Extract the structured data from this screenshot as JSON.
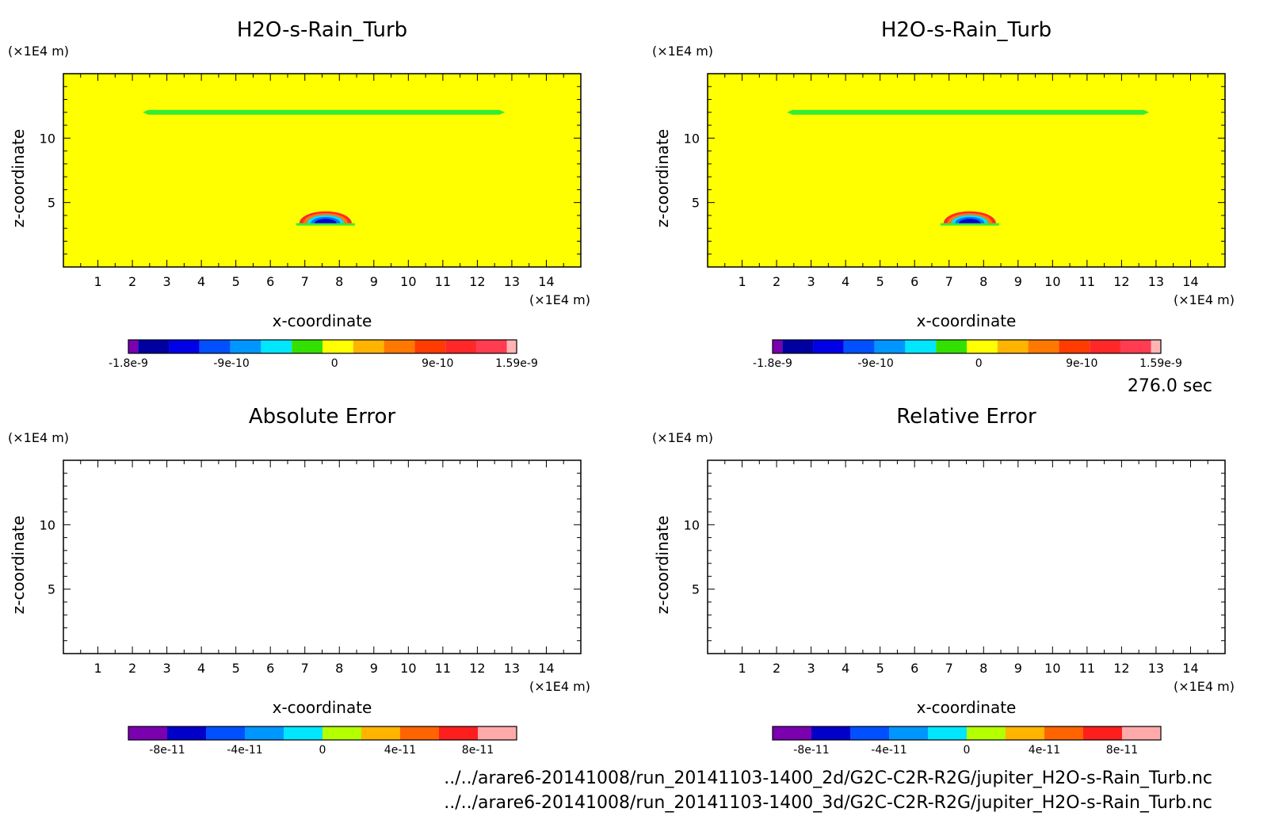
{
  "time_label": "276.0 sec",
  "footer": {
    "line1": "../../arare6-20141008/run_20141103-1400_2d/G2C-C2R-R2G/jupiter_H2O-s-Rain_Turb.nc",
    "line2": "../../arare6-20141008/run_20141103-1400_3d/G2C-C2R-R2G/jupiter_H2O-s-Rain_Turb.nc"
  },
  "chart_data": [
    {
      "type": "heatmap",
      "title": "H2O-s-Rain_Turb",
      "xlabel": "x-coordinate",
      "ylabel": "z-coordinate",
      "x_unit": "(×1E4 m)",
      "y_unit": "(×1E4 m)",
      "xlim": [
        0,
        15
      ],
      "ylim": [
        0,
        15
      ],
      "x_ticks": [
        "1",
        "2",
        "3",
        "4",
        "5",
        "6",
        "7",
        "8",
        "9",
        "10",
        "11",
        "12",
        "13",
        "14"
      ],
      "y_ticks": [
        "5",
        "10"
      ],
      "background_color": "#ffff00",
      "features": [
        {
          "kind": "band",
          "x": [
            2.3,
            12.8
          ],
          "z": 12.0,
          "color": "#33ee33"
        },
        {
          "kind": "dome",
          "x_center": 7.6,
          "z_base": 3.4,
          "width": 1.7,
          "colors": [
            "#ff2a2a",
            "#ff7a00",
            "#00e0ff",
            "#0070ff",
            "#0000c8"
          ]
        }
      ],
      "colorbar": {
        "colors": [
          "#7a00b0",
          "#0000a0",
          "#0000e6",
          "#0050ff",
          "#0096ff",
          "#00e6ff",
          "#33e000",
          "#ffff00",
          "#ffb400",
          "#ff7800",
          "#ff3c00",
          "#ff2828",
          "#ff3c50",
          "#ffb4b4"
        ],
        "tick_labels": [
          "-1.8e-9",
          "-9e-10",
          "0",
          "9e-10",
          "1.59e-9"
        ],
        "tick_values": [
          -1.8e-09,
          -9e-10,
          0,
          9e-10,
          1.59e-09
        ],
        "range": [
          -1.8e-09,
          1.59e-09
        ]
      }
    },
    {
      "type": "heatmap",
      "title": "H2O-s-Rain_Turb",
      "xlabel": "x-coordinate",
      "ylabel": "z-coordinate",
      "x_unit": "(×1E4 m)",
      "y_unit": "(×1E4 m)",
      "xlim": [
        0,
        15
      ],
      "ylim": [
        0,
        15
      ],
      "x_ticks": [
        "1",
        "2",
        "3",
        "4",
        "5",
        "6",
        "7",
        "8",
        "9",
        "10",
        "11",
        "12",
        "13",
        "14"
      ],
      "y_ticks": [
        "5",
        "10"
      ],
      "background_color": "#ffff00",
      "features": [
        {
          "kind": "band",
          "x": [
            2.3,
            12.8
          ],
          "z": 12.0,
          "color": "#33ee33"
        },
        {
          "kind": "dome",
          "x_center": 7.6,
          "z_base": 3.4,
          "width": 1.7,
          "colors": [
            "#ff2a2a",
            "#ff7a00",
            "#00e0ff",
            "#0070ff",
            "#0000c8"
          ]
        }
      ],
      "colorbar": {
        "colors": [
          "#7a00b0",
          "#0000a0",
          "#0000e6",
          "#0050ff",
          "#0096ff",
          "#00e6ff",
          "#33e000",
          "#ffff00",
          "#ffb400",
          "#ff7800",
          "#ff3c00",
          "#ff2828",
          "#ff3c50",
          "#ffb4b4"
        ],
        "tick_labels": [
          "-1.8e-9",
          "-9e-10",
          "0",
          "9e-10",
          "1.59e-9"
        ],
        "tick_values": [
          -1.8e-09,
          -9e-10,
          0,
          9e-10,
          1.59e-09
        ],
        "range": [
          -1.8e-09,
          1.59e-09
        ]
      }
    },
    {
      "type": "heatmap",
      "title": "Absolute Error",
      "xlabel": "x-coordinate",
      "ylabel": "z-coordinate",
      "x_unit": "(×1E4 m)",
      "y_unit": "(×1E4 m)",
      "xlim": [
        0,
        15
      ],
      "ylim": [
        0,
        15
      ],
      "x_ticks": [
        "1",
        "2",
        "3",
        "4",
        "5",
        "6",
        "7",
        "8",
        "9",
        "10",
        "11",
        "12",
        "13",
        "14"
      ],
      "y_ticks": [
        "5",
        "10"
      ],
      "background_color": "#ffffff",
      "features": [],
      "colorbar": {
        "colors": [
          "#7a00b0",
          "#0000c8",
          "#0050ff",
          "#0096ff",
          "#00e6ff",
          "#b4ff00",
          "#ffb400",
          "#ff6400",
          "#ff1e1e",
          "#ffaaaa"
        ],
        "tick_labels": [
          "-8e-11",
          "-4e-11",
          "0",
          "4e-11",
          "8e-11"
        ],
        "tick_values": [
          -8e-11,
          -4e-11,
          0,
          4e-11,
          8e-11
        ],
        "range": [
          -1e-10,
          1e-10
        ]
      }
    },
    {
      "type": "heatmap",
      "title": "Relative Error",
      "xlabel": "x-coordinate",
      "ylabel": "z-coordinate",
      "x_unit": "(×1E4 m)",
      "y_unit": "(×1E4 m)",
      "xlim": [
        0,
        15
      ],
      "ylim": [
        0,
        15
      ],
      "x_ticks": [
        "1",
        "2",
        "3",
        "4",
        "5",
        "6",
        "7",
        "8",
        "9",
        "10",
        "11",
        "12",
        "13",
        "14"
      ],
      "y_ticks": [
        "5",
        "10"
      ],
      "background_color": "#ffffff",
      "features": [],
      "colorbar": {
        "colors": [
          "#7a00b0",
          "#0000c8",
          "#0050ff",
          "#0096ff",
          "#00e6ff",
          "#b4ff00",
          "#ffb400",
          "#ff6400",
          "#ff1e1e",
          "#ffaaaa"
        ],
        "tick_labels": [
          "-8e-11",
          "-4e-11",
          "0",
          "4e-11",
          "8e-11"
        ],
        "tick_values": [
          -8e-11,
          -4e-11,
          0,
          4e-11,
          8e-11
        ],
        "range": [
          -1e-10,
          1e-10
        ]
      }
    }
  ]
}
